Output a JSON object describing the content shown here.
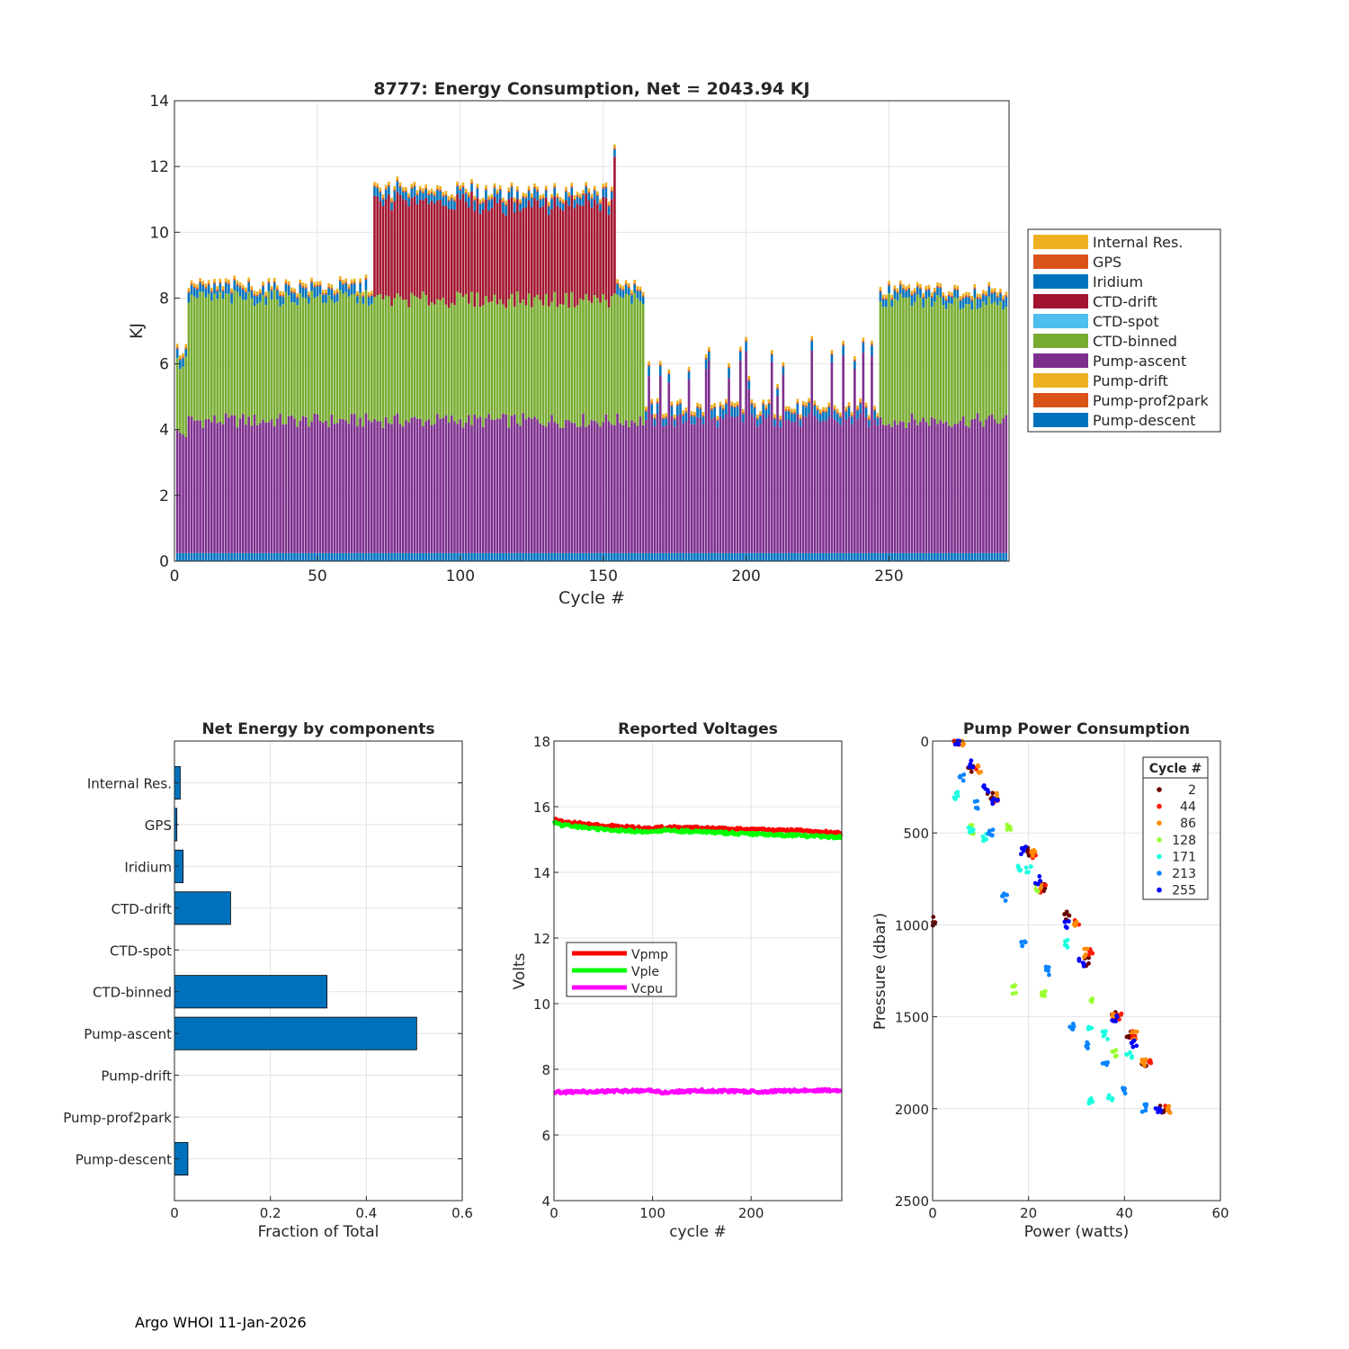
{
  "footer": {
    "text": "Argo WHOI 11-Jan-2026"
  },
  "colors": {
    "pump_descent": "#0072BD",
    "pump_prof2park": "#D95319",
    "pump_drift": "#EDB120",
    "pump_ascent": "#7E2F8E",
    "ctd_binned": "#77AC30",
    "ctd_spot": "#4DBEEE",
    "ctd_drift": "#A2142F",
    "iridium": "#0072BD",
    "gps": "#D95319",
    "internal_res": "#EDB120",
    "vpmp": "#FF0000",
    "vple": "#00FF00",
    "vcpu": "#FF00FF"
  },
  "chart_data": [
    {
      "id": "energy",
      "type": "bar",
      "stacked": true,
      "title": "8777: Energy Consumption,  Net = 2043.94 KJ",
      "xlabel": "Cycle #",
      "ylabel": "KJ",
      "xlim": [
        0,
        292
      ],
      "ylim": [
        0,
        14
      ],
      "xticks": [
        0,
        50,
        100,
        150,
        200,
        250
      ],
      "yticks": [
        0,
        2,
        4,
        6,
        8,
        10,
        12,
        14
      ],
      "grid": true,
      "legend_position": "outside-right",
      "legend": [
        "Internal Res.",
        "GPS",
        "Iridium",
        "CTD-drift",
        "CTD-spot",
        "CTD-binned",
        "Pump-ascent",
        "Pump-drift",
        "Pump-prof2park",
        "Pump-descent"
      ],
      "segments": [
        {
          "label": "Pump-descent",
          "color_key": "pump_descent",
          "approx": 0.25
        },
        {
          "label": "Pump-ascent",
          "color_key": "pump_ascent",
          "approx": 3.9
        },
        {
          "label": "CTD-binned",
          "color_key": "ctd_binned",
          "approx": 3.7
        },
        {
          "label": "CTD-drift",
          "color_key": "ctd_drift",
          "approx": 2.9
        },
        {
          "label": "Iridium",
          "color_key": "iridium",
          "approx": 0.2
        },
        {
          "label": "GPS",
          "color_key": "gps",
          "approx": 0.05
        },
        {
          "label": "Internal Res.",
          "color_key": "internal_res",
          "approx": 0.1
        }
      ],
      "phases": [
        {
          "cycles": [
            1,
            4
          ],
          "total": 6.3,
          "ctd_binned": true,
          "ctd_drift": false
        },
        {
          "cycles": [
            5,
            69
          ],
          "total": 8.3,
          "ctd_binned": true,
          "ctd_drift": false
        },
        {
          "cycles": [
            70,
            154
          ],
          "total": 11.2,
          "ctd_binned": true,
          "ctd_drift": true
        },
        {
          "cycles": [
            155,
            164
          ],
          "total": 8.3,
          "ctd_binned": true,
          "ctd_drift": false
        },
        {
          "cycles": [
            165,
            246
          ],
          "total": 4.5,
          "ctd_binned": false,
          "ctd_drift": false
        },
        {
          "cycles": [
            247,
            292
          ],
          "total": 8.2,
          "ctd_binned": true,
          "ctd_drift": false
        }
      ],
      "peak": {
        "cycle": 154,
        "total": 12.7
      }
    },
    {
      "id": "components",
      "type": "bar",
      "orientation": "horizontal",
      "title": "Net Energy by components",
      "xlabel": "Fraction of Total",
      "xlim": [
        0,
        0.6
      ],
      "xticks": [
        0,
        0.2,
        0.4,
        0.6
      ],
      "xtick_labels": [
        "0",
        "0.2",
        "0.4",
        "0.6"
      ],
      "grid": true,
      "categories": [
        "Internal Res.",
        "GPS",
        "Iridium",
        "CTD-drift",
        "CTD-spot",
        "CTD-binned",
        "Pump-ascent",
        "Pump-drift",
        "Pump-prof2park",
        "Pump-descent"
      ],
      "values": [
        0.012,
        0.005,
        0.018,
        0.117,
        0.0,
        0.318,
        0.505,
        0.0,
        0.0,
        0.028
      ]
    },
    {
      "id": "voltages",
      "type": "line",
      "title": "Reported Voltages",
      "xlabel": "cycle #",
      "ylabel": "Volts",
      "xlim": [
        0,
        292
      ],
      "ylim": [
        4,
        18
      ],
      "xticks": [
        0,
        100,
        200
      ],
      "yticks": [
        4,
        6,
        8,
        10,
        12,
        14,
        16,
        18
      ],
      "grid": true,
      "legend_position": "center-left",
      "series": [
        {
          "name": "Vpmp",
          "color_key": "vpmp",
          "x": [
            0,
            5,
            40,
            100,
            110,
            150,
            200,
            250,
            280,
            292
          ],
          "values": [
            15.65,
            15.55,
            15.45,
            15.33,
            15.38,
            15.35,
            15.3,
            15.27,
            15.22,
            15.2
          ]
        },
        {
          "name": "Vple",
          "color_key": "vple",
          "x": [
            0,
            5,
            40,
            100,
            110,
            150,
            200,
            250,
            280,
            292
          ],
          "values": [
            15.55,
            15.45,
            15.33,
            15.22,
            15.28,
            15.23,
            15.17,
            15.12,
            15.08,
            15.07
          ]
        },
        {
          "name": "Vcpu",
          "color_key": "vcpu",
          "x": [
            0,
            100,
            110,
            150,
            200,
            250,
            292
          ],
          "values": [
            7.3,
            7.35,
            7.3,
            7.35,
            7.32,
            7.35,
            7.37
          ]
        }
      ]
    },
    {
      "id": "pump_power",
      "type": "scatter",
      "title": "Pump Power Consumption",
      "xlabel": "Power (watts)",
      "ylabel": "Pressure (dbar)",
      "xlim": [
        0,
        60
      ],
      "ylim": [
        0,
        2500
      ],
      "y_reversed": true,
      "xticks": [
        0,
        20,
        40,
        60
      ],
      "yticks": [
        0,
        500,
        1000,
        1500,
        2000,
        2500
      ],
      "grid": true,
      "legend_title": "Cycle #",
      "legend_position": "top-right",
      "series": [
        {
          "name": "2",
          "color": "#6B0000",
          "x": [
            5,
            8,
            12,
            20,
            23,
            28,
            32,
            38,
            41,
            44,
            48,
            0
          ],
          "values": [
            0,
            150,
            300,
            600,
            800,
            950,
            1200,
            1500,
            1600,
            1750,
            2000,
            980
          ]
        },
        {
          "name": "44",
          "color": "#FF1A00",
          "x": [
            5,
            9,
            13,
            21,
            23,
            30,
            33,
            39,
            42,
            45,
            49
          ],
          "values": [
            0,
            150,
            320,
            620,
            800,
            1000,
            1150,
            1500,
            1600,
            1750,
            2005
          ]
        },
        {
          "name": "86",
          "color": "#FF8C00",
          "x": [
            6,
            10,
            13,
            21,
            22,
            30,
            32,
            38,
            42,
            44,
            49
          ],
          "values": [
            0,
            150,
            300,
            600,
            780,
            1000,
            1150,
            1500,
            1600,
            1750,
            2000
          ]
        },
        {
          "name": "128",
          "color": "#9BFF32",
          "x": [
            8,
            16,
            22,
            17,
            23,
            33,
            38
          ],
          "values": [
            480,
            480,
            800,
            1350,
            1370,
            1400,
            1700
          ]
        },
        {
          "name": "171",
          "color": "#1AFFE0",
          "x": [
            5,
            8,
            11,
            18,
            20,
            28,
            33,
            36,
            41,
            33,
            37
          ],
          "values": [
            300,
            480,
            520,
            700,
            700,
            1100,
            1550,
            1600,
            1700,
            1950,
            1950
          ]
        },
        {
          "name": "213",
          "color": "#0A84FF",
          "x": [
            6,
            9,
            12,
            15,
            19,
            24,
            29,
            32,
            36,
            40,
            44
          ],
          "values": [
            200,
            350,
            500,
            850,
            1100,
            1250,
            1550,
            1650,
            1750,
            1900,
            2000
          ]
        },
        {
          "name": "255",
          "color": "#0000FF",
          "x": [
            5,
            8,
            11,
            13,
            19,
            22,
            28,
            31,
            38,
            42,
            47
          ],
          "values": [
            0,
            120,
            260,
            330,
            600,
            760,
            1000,
            1200,
            1500,
            1650,
            2000
          ]
        }
      ]
    }
  ]
}
